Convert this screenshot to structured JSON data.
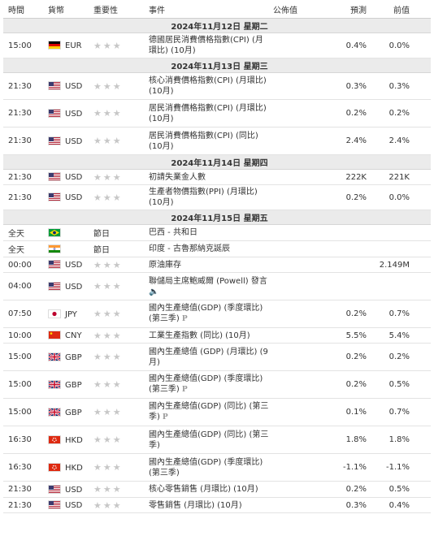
{
  "headers": {
    "time": "時間",
    "currency": "貨幣",
    "importance": "重要性",
    "event": "事件",
    "actual": "公佈值",
    "forecast": "預測",
    "previous": "前值"
  },
  "days": [
    {
      "date": "2024年11月12日 星期二",
      "rows": [
        {
          "time": "15:00",
          "flag": "de",
          "cur": "EUR",
          "imp": "★★★",
          "ev": [
            "德國居民消費價格指數(CPI) (月",
            "環比) (10月)"
          ],
          "act": "",
          "fc": "0.4%",
          "prev": "0.0%",
          "h": 31
        }
      ]
    },
    {
      "date": "2024年11月13日 星期三",
      "rows": [
        {
          "time": "21:30",
          "flag": "us",
          "cur": "USD",
          "imp": "★★★",
          "ev": [
            "核心消費價格指數(CPI) (月環比)",
            "(10月)"
          ],
          "act": "",
          "fc": "0.3%",
          "prev": "0.3%",
          "h": 33
        },
        {
          "time": "21:30",
          "flag": "us",
          "cur": "USD",
          "imp": "★★★",
          "ev": [
            "居民消費價格指數(CPI) (月環比)",
            "(10月)"
          ],
          "act": "",
          "fc": "0.2%",
          "prev": "0.2%",
          "h": 34
        },
        {
          "time": "21:30",
          "flag": "us",
          "cur": "USD",
          "imp": "★★★",
          "ev": [
            "居民消費價格指數(CPI) (同比)",
            "(10月)"
          ],
          "act": "",
          "fc": "2.4%",
          "prev": "2.4%",
          "h": 34
        }
      ]
    },
    {
      "date": "2024年11月14日 星期四",
      "rows": [
        {
          "time": "21:30",
          "flag": "us",
          "cur": "USD",
          "imp": "★★★",
          "ev": [
            "初請失業金人數"
          ],
          "act": "",
          "fc": "222K",
          "prev": "221K",
          "h": 19
        },
        {
          "time": "21:30",
          "flag": "us",
          "cur": "USD",
          "imp": "★★★",
          "ev": [
            "生產者物價指數(PPI) (月環比)",
            "(10月)"
          ],
          "act": "",
          "fc": "0.2%",
          "prev": "0.0%",
          "h": 31
        }
      ]
    },
    {
      "date": "2024年11月15日 星期五",
      "rows": [
        {
          "time": "全天",
          "flag": "br",
          "cur": "",
          "imp": "節日",
          "ev": [
            "巴西 - 共和日"
          ],
          "act": "",
          "fc": "",
          "prev": "",
          "h": 20
        },
        {
          "time": "全天",
          "flag": "in",
          "cur": "",
          "imp": "節日",
          "ev": [
            "印度 - 古魯那納克誕辰"
          ],
          "act": "",
          "fc": "",
          "prev": "",
          "h": 20
        },
        {
          "time": "00:00",
          "flag": "us",
          "cur": "USD",
          "imp": "★★★",
          "ev": [
            "原油庫存"
          ],
          "act": "",
          "fc": "",
          "prev": "2.149M",
          "h": 19
        },
        {
          "time": "04:00",
          "flag": "us",
          "cur": "USD",
          "imp": "★★★",
          "ev": [
            "聯儲局主席鮑威爾 (Powell) 發言"
          ],
          "speaker": true,
          "act": "",
          "fc": "",
          "prev": "",
          "h": 34
        },
        {
          "time": "07:50",
          "flag": "jp",
          "cur": "JPY",
          "imp": "★★★",
          "ev": [
            "國內生產總值(GDP) (季度環比)",
            "(第三季)"
          ],
          "p": true,
          "act": "",
          "fc": "0.2%",
          "prev": "0.7%",
          "h": 34
        },
        {
          "time": "10:00",
          "flag": "cn",
          "cur": "CNY",
          "imp": "★★★",
          "ev": [
            "工業生產指數 (同比) (10月)"
          ],
          "act": "",
          "fc": "5.5%",
          "prev": "5.4%",
          "h": 19
        },
        {
          "time": "15:00",
          "flag": "gb",
          "cur": "GBP",
          "imp": "★★★",
          "ev": [
            "國內生產總值 (GDP) (月環比) (9",
            "月)"
          ],
          "act": "",
          "fc": "0.2%",
          "prev": "0.2%",
          "h": 34
        },
        {
          "time": "15:00",
          "flag": "gb",
          "cur": "GBP",
          "imp": "★★★",
          "ev": [
            "國內生產總值(GDP) (季度環比)",
            "(第三季)"
          ],
          "p": true,
          "act": "",
          "fc": "0.2%",
          "prev": "0.5%",
          "h": 34
        },
        {
          "time": "15:00",
          "flag": "gb",
          "cur": "GBP",
          "imp": "★★★",
          "ev": [
            "國內生產總值(GDP) (同比) (第三",
            "季)"
          ],
          "p": true,
          "act": "",
          "fc": "0.1%",
          "prev": "0.7%",
          "h": 34
        },
        {
          "time": "16:30",
          "flag": "hk",
          "cur": "HKD",
          "imp": "★★★",
          "ev": [
            "國內生產總值(GDP) (同比) (第三",
            "季)"
          ],
          "act": "",
          "fc": "1.8%",
          "prev": "1.8%",
          "h": 34
        },
        {
          "time": "16:30",
          "flag": "hk",
          "cur": "HKD",
          "imp": "★★★",
          "ev": [
            "國內生產總值(GDP) (季度環比)",
            "(第三季)"
          ],
          "act": "",
          "fc": "-1.1%",
          "prev": "-1.1%",
          "h": 34
        },
        {
          "time": "21:30",
          "flag": "us",
          "cur": "USD",
          "imp": "★★★",
          "ev": [
            "核心零售銷售 (月環比) (10月)"
          ],
          "act": "",
          "fc": "0.2%",
          "prev": "0.5%",
          "h": 20
        },
        {
          "time": "21:30",
          "flag": "us",
          "cur": "USD",
          "imp": "★★★",
          "ev": [
            "零售銷售 (月環比) (10月)"
          ],
          "act": "",
          "fc": "0.3%",
          "prev": "0.4%",
          "h": 19
        }
      ]
    }
  ]
}
